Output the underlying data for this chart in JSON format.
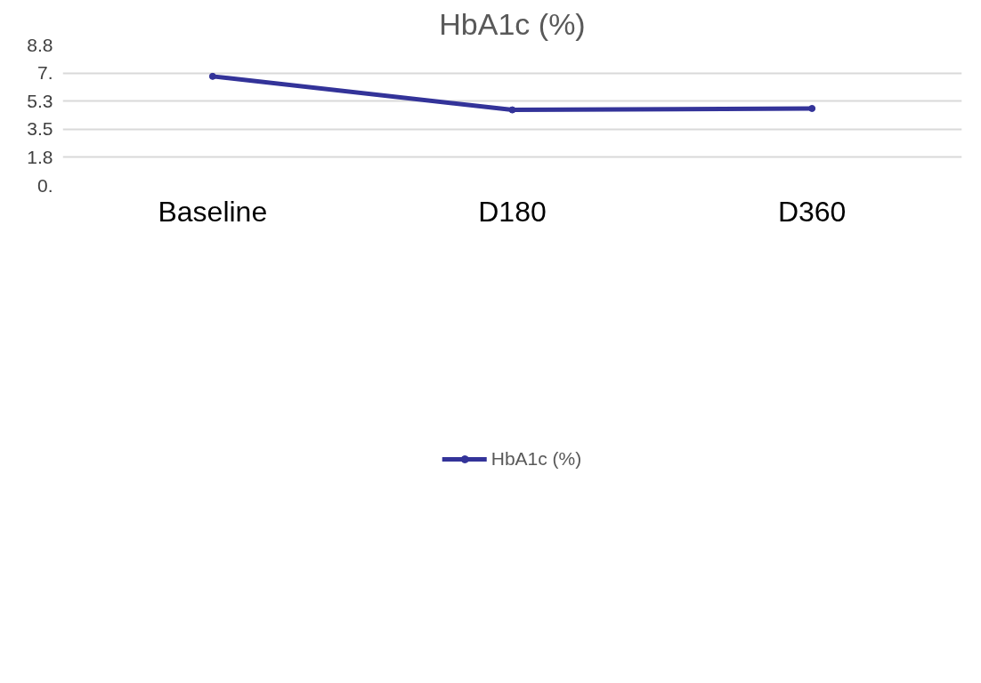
{
  "chart_data": {
    "type": "line",
    "title": "HbA1c (%)",
    "categories": [
      "Baseline",
      "D180",
      "D360"
    ],
    "series": [
      {
        "name": "HbA1c (%)",
        "color": "#333399",
        "values": [
          6.83,
          4.73,
          4.82
        ]
      }
    ],
    "ylim": [
      0,
      8.8
    ],
    "yticks": [
      {
        "value": 0,
        "label": "0."
      },
      {
        "value": 1.76,
        "label": "1.8"
      },
      {
        "value": 3.52,
        "label": "3.5"
      },
      {
        "value": 5.28,
        "label": "5.3"
      },
      {
        "value": 7.04,
        "label": "7."
      },
      8.8
    ],
    "grid": "y",
    "legend": "bottom",
    "marker": "circle",
    "line_style": "solid"
  }
}
